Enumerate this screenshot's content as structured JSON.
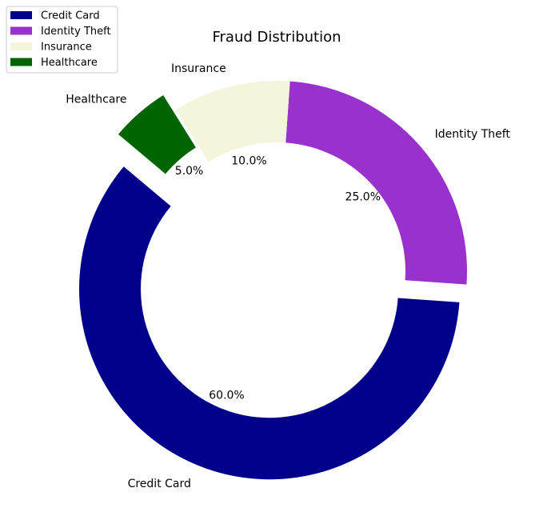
{
  "chart_data": {
    "type": "pie",
    "variant": "donut",
    "title": "Fraud Distribution",
    "categories": [
      "Credit Card",
      "Identity Theft",
      "Insurance",
      "Healthcare"
    ],
    "values": [
      60.0,
      25.0,
      10.0,
      5.0
    ],
    "percent_labels": [
      "60.0%",
      "25.0%",
      "10.0%",
      "5.0%"
    ],
    "colors": [
      "#00008b",
      "#9932cc",
      "#f5f5dc",
      "#006400"
    ],
    "exploded": [
      "Credit Card",
      "Healthcare"
    ],
    "legend": {
      "placement": "top-left",
      "entries": [
        "Credit Card",
        "Identity Theft",
        "Insurance",
        "Healthcare"
      ]
    }
  }
}
